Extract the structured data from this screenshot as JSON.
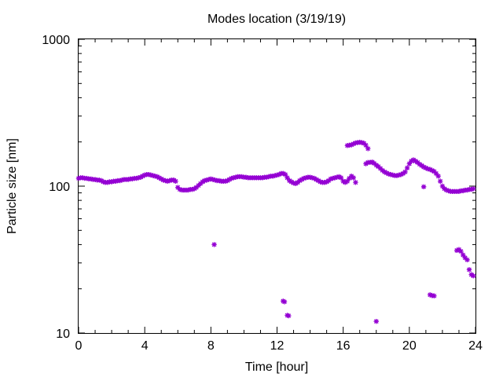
{
  "chart_data": {
    "type": "scatter",
    "title": "Modes location (3/19/19)",
    "xlabel": "Time [hour]",
    "ylabel": "Particle size [nm]",
    "xlim": [
      0,
      24
    ],
    "ylim": [
      10,
      1000
    ],
    "yscale": "log",
    "x_ticks": [
      0,
      4,
      8,
      12,
      16,
      20,
      24
    ],
    "x_tick_labels": [
      "0",
      "4",
      "8",
      "12",
      "16",
      "20",
      "24"
    ],
    "y_ticks": [
      10,
      100,
      1000
    ],
    "y_tick_labels": [
      "10",
      "100",
      "1000"
    ],
    "marker_color": "#9400d3",
    "series": [
      {
        "points": [
          [
            0.0,
            113
          ],
          [
            0.12,
            114
          ],
          [
            0.25,
            114
          ],
          [
            0.37,
            113
          ],
          [
            0.5,
            113
          ],
          [
            0.62,
            112
          ],
          [
            0.75,
            112
          ],
          [
            0.87,
            111
          ],
          [
            1.0,
            111
          ],
          [
            1.12,
            110
          ],
          [
            1.25,
            110
          ],
          [
            1.37,
            109
          ],
          [
            1.5,
            107
          ],
          [
            1.62,
            106
          ],
          [
            1.75,
            106
          ],
          [
            1.87,
            107
          ],
          [
            2.0,
            107
          ],
          [
            2.12,
            108
          ],
          [
            2.25,
            108
          ],
          [
            2.37,
            109
          ],
          [
            2.5,
            109
          ],
          [
            2.62,
            110
          ],
          [
            2.75,
            111
          ],
          [
            2.87,
            111
          ],
          [
            3.0,
            111
          ],
          [
            3.12,
            112
          ],
          [
            3.25,
            112
          ],
          [
            3.37,
            113
          ],
          [
            3.5,
            113
          ],
          [
            3.62,
            114
          ],
          [
            3.75,
            115
          ],
          [
            3.87,
            117
          ],
          [
            4.0,
            119
          ],
          [
            4.12,
            120
          ],
          [
            4.25,
            120
          ],
          [
            4.37,
            119
          ],
          [
            4.5,
            118
          ],
          [
            4.62,
            117
          ],
          [
            4.75,
            116
          ],
          [
            4.87,
            114
          ],
          [
            5.0,
            112
          ],
          [
            5.12,
            110
          ],
          [
            5.25,
            109
          ],
          [
            5.37,
            108
          ],
          [
            5.5,
            109
          ],
          [
            5.62,
            110
          ],
          [
            5.75,
            110
          ],
          [
            5.87,
            108
          ],
          [
            6.0,
            98
          ],
          [
            6.12,
            95
          ],
          [
            6.25,
            94
          ],
          [
            6.37,
            94
          ],
          [
            6.5,
            94
          ],
          [
            6.62,
            94
          ],
          [
            6.75,
            95
          ],
          [
            6.87,
            95
          ],
          [
            7.0,
            96
          ],
          [
            7.12,
            98
          ],
          [
            7.25,
            101
          ],
          [
            7.37,
            104
          ],
          [
            7.5,
            107
          ],
          [
            7.62,
            109
          ],
          [
            7.75,
            110
          ],
          [
            7.87,
            111
          ],
          [
            8.0,
            112
          ],
          [
            8.12,
            111
          ],
          [
            8.25,
            110
          ],
          [
            8.37,
            109
          ],
          [
            8.5,
            109
          ],
          [
            8.62,
            108
          ],
          [
            8.75,
            108
          ],
          [
            8.87,
            108
          ],
          [
            9.0,
            109
          ],
          [
            9.12,
            111
          ],
          [
            9.25,
            113
          ],
          [
            9.37,
            114
          ],
          [
            9.5,
            115
          ],
          [
            9.62,
            116
          ],
          [
            9.75,
            116
          ],
          [
            9.87,
            116
          ],
          [
            10.0,
            115
          ],
          [
            10.12,
            115
          ],
          [
            10.25,
            114
          ],
          [
            10.37,
            114
          ],
          [
            10.5,
            114
          ],
          [
            10.62,
            114
          ],
          [
            10.75,
            114
          ],
          [
            10.87,
            114
          ],
          [
            11.0,
            114
          ],
          [
            11.12,
            114
          ],
          [
            11.25,
            115
          ],
          [
            11.37,
            115
          ],
          [
            11.5,
            116
          ],
          [
            11.62,
            117
          ],
          [
            11.75,
            117
          ],
          [
            11.87,
            118
          ],
          [
            12.0,
            119
          ],
          [
            12.12,
            120
          ],
          [
            12.25,
            122
          ],
          [
            12.37,
            122
          ],
          [
            12.5,
            120
          ],
          [
            12.62,
            114
          ],
          [
            12.75,
            109
          ],
          [
            12.87,
            107
          ],
          [
            13.0,
            105
          ],
          [
            13.12,
            104
          ],
          [
            13.25,
            106
          ],
          [
            13.37,
            109
          ],
          [
            13.5,
            111
          ],
          [
            13.62,
            113
          ],
          [
            13.75,
            114
          ],
          [
            13.87,
            115
          ],
          [
            14.0,
            115
          ],
          [
            14.12,
            114
          ],
          [
            14.25,
            113
          ],
          [
            14.37,
            111
          ],
          [
            14.5,
            109
          ],
          [
            14.62,
            107
          ],
          [
            14.75,
            106
          ],
          [
            14.87,
            106
          ],
          [
            15.0,
            107
          ],
          [
            15.12,
            109
          ],
          [
            15.25,
            112
          ],
          [
            15.37,
            113
          ],
          [
            15.5,
            114
          ],
          [
            15.62,
            115
          ],
          [
            15.75,
            116
          ],
          [
            15.87,
            114
          ],
          [
            16.0,
            108
          ],
          [
            16.12,
            106
          ],
          [
            16.25,
            108
          ],
          [
            16.37,
            113
          ],
          [
            16.5,
            117
          ],
          [
            16.62,
            114
          ],
          [
            16.75,
            106
          ],
          [
            16.25,
            189
          ],
          [
            16.37,
            190
          ],
          [
            16.5,
            191
          ],
          [
            16.62,
            194
          ],
          [
            16.75,
            197
          ],
          [
            16.87,
            198
          ],
          [
            17.0,
            199
          ],
          [
            17.12,
            198
          ],
          [
            17.25,
            196
          ],
          [
            17.37,
            190
          ],
          [
            17.5,
            180
          ],
          [
            17.37,
            142
          ],
          [
            17.5,
            145
          ],
          [
            17.62,
            145
          ],
          [
            17.75,
            146
          ],
          [
            17.87,
            143
          ],
          [
            18.0,
            139
          ],
          [
            18.12,
            136
          ],
          [
            18.25,
            132
          ],
          [
            18.37,
            128
          ],
          [
            18.5,
            125
          ],
          [
            18.62,
            123
          ],
          [
            18.75,
            121
          ],
          [
            18.87,
            120
          ],
          [
            19.0,
            119
          ],
          [
            19.12,
            118
          ],
          [
            19.25,
            118
          ],
          [
            19.37,
            119
          ],
          [
            19.5,
            120
          ],
          [
            19.62,
            122
          ],
          [
            19.75,
            125
          ],
          [
            19.87,
            133
          ],
          [
            20.0,
            142
          ],
          [
            20.12,
            148
          ],
          [
            20.25,
            151
          ],
          [
            20.37,
            148
          ],
          [
            20.5,
            145
          ],
          [
            20.62,
            141
          ],
          [
            20.75,
            138
          ],
          [
            20.87,
            135
          ],
          [
            21.0,
            133
          ],
          [
            21.12,
            131
          ],
          [
            21.25,
            130
          ],
          [
            21.37,
            128
          ],
          [
            21.5,
            126
          ],
          [
            21.62,
            122
          ],
          [
            21.75,
            117
          ],
          [
            21.87,
            108
          ],
          [
            22.0,
            100
          ],
          [
            22.12,
            96
          ],
          [
            22.25,
            94
          ],
          [
            22.37,
            93
          ],
          [
            22.5,
            92
          ],
          [
            22.62,
            92
          ],
          [
            22.75,
            92
          ],
          [
            22.87,
            92
          ],
          [
            23.0,
            92
          ],
          [
            23.12,
            93
          ],
          [
            23.25,
            93
          ],
          [
            23.37,
            94
          ],
          [
            23.5,
            94
          ],
          [
            23.62,
            95
          ],
          [
            23.75,
            95
          ],
          [
            23.87,
            96
          ],
          [
            20.87,
            99
          ],
          [
            8.2,
            40
          ],
          [
            12.37,
            16.5
          ],
          [
            12.45,
            16.3
          ],
          [
            12.62,
            13.2
          ],
          [
            12.7,
            13.1
          ],
          [
            18.0,
            12.0
          ],
          [
            21.25,
            18.2
          ],
          [
            21.37,
            18.0
          ],
          [
            21.5,
            17.9
          ],
          [
            22.87,
            36.5
          ],
          [
            23.0,
            37
          ],
          [
            23.12,
            36
          ],
          [
            23.25,
            34
          ],
          [
            23.37,
            32.5
          ],
          [
            23.5,
            31.5
          ],
          [
            23.62,
            27
          ],
          [
            23.75,
            25
          ],
          [
            23.87,
            24.5
          ]
        ]
      }
    ]
  }
}
